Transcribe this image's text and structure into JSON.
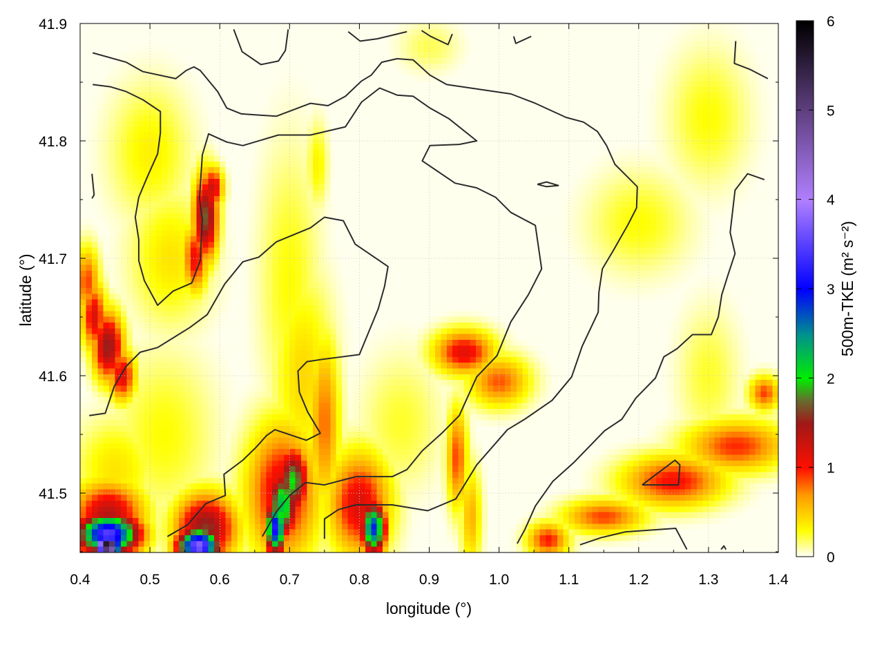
{
  "chart_data": {
    "type": "heatmap",
    "xlabel": "longitude (°)",
    "ylabel": "latitude (°)",
    "colorbar_label": "500m-TKE (m² s⁻²)",
    "xlim": [
      0.4,
      1.4
    ],
    "ylim": [
      41.4494,
      41.9
    ],
    "xticks": [
      "0.4",
      "0.5",
      "0.6",
      "0.7",
      "0.8",
      "0.9",
      "1.0",
      "1.1",
      "1.2",
      "1.3",
      "1.4"
    ],
    "yticks": [
      "41.5",
      "41.6",
      "41.7",
      "41.8",
      "41.9"
    ],
    "clim": [
      0,
      6
    ],
    "cticks": [
      "0",
      "1",
      "2",
      "3",
      "4",
      "5",
      "6"
    ],
    "grid": true,
    "colormap": [
      [
        0,
        "#ffffff"
      ],
      [
        0.3,
        "#ffff00"
      ],
      [
        0.7,
        "#ff9900"
      ],
      [
        1.0,
        "#ff1000"
      ],
      [
        1.5,
        "#a01818"
      ],
      [
        1.75,
        "#6a6a30"
      ],
      [
        2.0,
        "#00ee00"
      ],
      [
        2.5,
        "#009090"
      ],
      [
        3.0,
        "#0000ff"
      ],
      [
        4.0,
        "#b080ff"
      ],
      [
        5.0,
        "#604080"
      ],
      [
        6.0,
        "#000000"
      ]
    ],
    "tke_hotspots": [
      {
        "lon": 0.42,
        "lat": 41.65,
        "sx": 0.012,
        "sy": 0.02,
        "v": 1.2
      },
      {
        "lon": 0.44,
        "lat": 41.625,
        "sx": 0.015,
        "sy": 0.02,
        "v": 1.55
      },
      {
        "lon": 0.46,
        "lat": 41.6,
        "sx": 0.013,
        "sy": 0.015,
        "v": 1.2
      },
      {
        "lon": 0.41,
        "lat": 41.68,
        "sx": 0.012,
        "sy": 0.02,
        "v": 0.9
      },
      {
        "lon": 0.58,
        "lat": 41.735,
        "sx": 0.012,
        "sy": 0.025,
        "v": 1.7
      },
      {
        "lon": 0.565,
        "lat": 41.7,
        "sx": 0.012,
        "sy": 0.02,
        "v": 1.1
      },
      {
        "lon": 0.59,
        "lat": 41.76,
        "sx": 0.01,
        "sy": 0.012,
        "v": 1.3
      },
      {
        "lon": 0.5,
        "lat": 41.79,
        "sx": 0.04,
        "sy": 0.04,
        "v": 0.35
      },
      {
        "lon": 0.53,
        "lat": 41.7,
        "sx": 0.04,
        "sy": 0.04,
        "v": 0.4
      },
      {
        "lon": 0.44,
        "lat": 41.455,
        "sx": 0.012,
        "sy": 0.006,
        "v": 6
      },
      {
        "lon": 0.44,
        "lat": 41.465,
        "sx": 0.03,
        "sy": 0.012,
        "v": 3.5
      },
      {
        "lon": 0.44,
        "lat": 41.48,
        "sx": 0.035,
        "sy": 0.02,
        "v": 1.4
      },
      {
        "lon": 0.57,
        "lat": 41.455,
        "sx": 0.02,
        "sy": 0.01,
        "v": 3.8
      },
      {
        "lon": 0.58,
        "lat": 41.47,
        "sx": 0.03,
        "sy": 0.02,
        "v": 1.6
      },
      {
        "lon": 0.68,
        "lat": 41.47,
        "sx": 0.01,
        "sy": 0.015,
        "v": 3.2
      },
      {
        "lon": 0.69,
        "lat": 41.49,
        "sx": 0.015,
        "sy": 0.02,
        "v": 2.3
      },
      {
        "lon": 0.705,
        "lat": 41.51,
        "sx": 0.015,
        "sy": 0.02,
        "v": 2.0
      },
      {
        "lon": 0.69,
        "lat": 41.5,
        "sx": 0.035,
        "sy": 0.04,
        "v": 1.2
      },
      {
        "lon": 0.82,
        "lat": 41.47,
        "sx": 0.012,
        "sy": 0.015,
        "v": 2.9
      },
      {
        "lon": 0.8,
        "lat": 41.49,
        "sx": 0.03,
        "sy": 0.03,
        "v": 1.2
      },
      {
        "lon": 0.75,
        "lat": 41.56,
        "sx": 0.015,
        "sy": 0.05,
        "v": 0.8
      },
      {
        "lon": 0.72,
        "lat": 41.6,
        "sx": 0.03,
        "sy": 0.06,
        "v": 0.45
      },
      {
        "lon": 0.95,
        "lat": 41.62,
        "sx": 0.03,
        "sy": 0.013,
        "v": 1.15
      },
      {
        "lon": 1.0,
        "lat": 41.595,
        "sx": 0.03,
        "sy": 0.015,
        "v": 0.85
      },
      {
        "lon": 0.94,
        "lat": 41.53,
        "sx": 0.01,
        "sy": 0.03,
        "v": 0.9
      },
      {
        "lon": 0.96,
        "lat": 41.48,
        "sx": 0.01,
        "sy": 0.03,
        "v": 0.6
      },
      {
        "lon": 1.07,
        "lat": 41.46,
        "sx": 0.02,
        "sy": 0.01,
        "v": 1.0
      },
      {
        "lon": 1.15,
        "lat": 41.48,
        "sx": 0.04,
        "sy": 0.01,
        "v": 0.9
      },
      {
        "lon": 1.25,
        "lat": 41.51,
        "sx": 0.05,
        "sy": 0.015,
        "v": 1.05
      },
      {
        "lon": 1.34,
        "lat": 41.54,
        "sx": 0.05,
        "sy": 0.015,
        "v": 0.95
      },
      {
        "lon": 1.38,
        "lat": 41.585,
        "sx": 0.015,
        "sy": 0.01,
        "v": 0.9
      },
      {
        "lon": 0.7,
        "lat": 41.68,
        "sx": 0.03,
        "sy": 0.08,
        "v": 0.3
      },
      {
        "lon": 0.52,
        "lat": 41.55,
        "sx": 0.05,
        "sy": 0.05,
        "v": 0.3
      },
      {
        "lon": 0.86,
        "lat": 41.56,
        "sx": 0.04,
        "sy": 0.04,
        "v": 0.25
      },
      {
        "lon": 1.2,
        "lat": 41.73,
        "sx": 0.05,
        "sy": 0.03,
        "v": 0.3
      },
      {
        "lon": 1.3,
        "lat": 41.82,
        "sx": 0.04,
        "sy": 0.04,
        "v": 0.3
      },
      {
        "lon": 0.74,
        "lat": 41.78,
        "sx": 0.01,
        "sy": 0.025,
        "v": 0.35
      },
      {
        "lon": 0.9,
        "lat": 41.88,
        "sx": 0.03,
        "sy": 0.015,
        "v": 0.2
      },
      {
        "lon": 1.3,
        "lat": 41.6,
        "sx": 0.03,
        "sy": 0.04,
        "v": 0.25
      },
      {
        "lon": 0.45,
        "lat": 41.52,
        "sx": 0.04,
        "sy": 0.03,
        "v": 0.4
      }
    ],
    "contours": [
      [
        [
          0.418,
          41.875
        ],
        [
          0.466,
          41.867
        ],
        [
          0.49,
          41.859
        ],
        [
          0.537,
          41.853
        ],
        [
          0.552,
          41.86
        ],
        [
          0.563,
          41.863
        ],
        [
          0.572,
          41.86
        ],
        [
          0.597,
          41.842
        ],
        [
          0.61,
          41.828
        ],
        [
          0.631,
          41.823
        ],
        [
          0.681,
          41.821
        ],
        [
          0.73,
          41.832
        ],
        [
          0.755,
          41.83
        ],
        [
          0.78,
          41.838
        ],
        [
          0.803,
          41.851
        ],
        [
          0.817,
          41.856
        ],
        [
          0.832,
          41.867
        ],
        [
          0.854,
          41.87
        ],
        [
          0.877,
          41.869
        ],
        [
          0.901,
          41.856
        ],
        [
          0.925,
          41.848
        ],
        [
          1.017,
          41.84
        ],
        [
          1.052,
          41.832
        ],
        [
          1.096,
          41.82
        ],
        [
          1.121,
          41.816
        ],
        [
          1.141,
          41.808
        ],
        [
          1.154,
          41.796
        ],
        [
          1.166,
          41.78
        ],
        [
          1.198,
          41.761
        ],
        [
          1.197,
          41.743
        ],
        [
          1.185,
          41.729
        ],
        [
          1.164,
          41.707
        ],
        [
          1.148,
          41.691
        ],
        [
          1.143,
          41.671
        ],
        [
          1.142,
          41.654
        ],
        [
          1.119,
          41.625
        ],
        [
          1.104,
          41.599
        ],
        [
          1.076,
          41.579
        ],
        [
          1.037,
          41.563
        ],
        [
          1.012,
          41.554
        ],
        [
          0.968,
          41.524
        ],
        [
          0.938,
          41.495
        ],
        [
          0.898,
          41.485
        ],
        [
          0.847,
          41.49
        ],
        [
          0.795,
          41.49
        ],
        [
          0.77,
          41.486
        ],
        [
          0.75,
          41.478
        ],
        [
          0.75,
          41.461
        ]
      ],
      [
        [
          0.418,
          41.848
        ],
        [
          0.444,
          41.846
        ],
        [
          0.466,
          41.842
        ],
        [
          0.49,
          41.835
        ],
        [
          0.515,
          41.825
        ],
        [
          0.515,
          41.807
        ],
        [
          0.511,
          41.789
        ],
        [
          0.496,
          41.769
        ],
        [
          0.484,
          41.752
        ],
        [
          0.479,
          41.735
        ],
        [
          0.484,
          41.716
        ],
        [
          0.484,
          41.698
        ],
        [
          0.492,
          41.681
        ],
        [
          0.511,
          41.66
        ],
        [
          0.533,
          41.672
        ],
        [
          0.56,
          41.679
        ],
        [
          0.572,
          41.698
        ],
        [
          0.575,
          41.733
        ],
        [
          0.571,
          41.751
        ],
        [
          0.575,
          41.788
        ],
        [
          0.584,
          41.806
        ],
        [
          0.61,
          41.799
        ],
        [
          0.633,
          41.796
        ],
        [
          0.684,
          41.805
        ],
        [
          0.73,
          41.805
        ],
        [
          0.78,
          41.812
        ],
        [
          0.803,
          41.833
        ],
        [
          0.829,
          41.845
        ],
        [
          0.854,
          41.839
        ],
        [
          0.877,
          41.838
        ],
        [
          0.901,
          41.828
        ],
        [
          0.928,
          41.819
        ],
        [
          0.968,
          41.8
        ],
        [
          0.943,
          41.797
        ],
        [
          0.901,
          41.796
        ],
        [
          0.89,
          41.783
        ],
        [
          0.937,
          41.764
        ],
        [
          0.968,
          41.76
        ],
        [
          0.995,
          41.752
        ],
        [
          1.017,
          41.739
        ],
        [
          1.052,
          41.728
        ],
        [
          1.061,
          41.691
        ],
        [
          1.042,
          41.669
        ],
        [
          1.017,
          41.646
        ],
        [
          0.997,
          41.617
        ],
        [
          0.968,
          41.599
        ],
        [
          0.943,
          41.566
        ],
        [
          0.918,
          41.551
        ],
        [
          0.89,
          41.536
        ],
        [
          0.868,
          41.52
        ],
        [
          0.847,
          41.514
        ],
        [
          0.795,
          41.514
        ],
        [
          0.75,
          41.507
        ],
        [
          0.723,
          41.509
        ],
        [
          0.7,
          41.498
        ],
        [
          0.681,
          41.484
        ],
        [
          0.661,
          41.463
        ]
      ],
      [
        [
          0.413,
          41.566
        ],
        [
          0.436,
          41.568
        ],
        [
          0.449,
          41.591
        ],
        [
          0.466,
          41.608
        ],
        [
          0.486,
          41.62
        ],
        [
          0.511,
          41.624
        ],
        [
          0.557,
          41.641
        ],
        [
          0.582,
          41.652
        ],
        [
          0.607,
          41.678
        ],
        [
          0.633,
          41.697
        ],
        [
          0.656,
          41.701
        ],
        [
          0.681,
          41.714
        ],
        [
          0.73,
          41.726
        ],
        [
          0.75,
          41.735
        ],
        [
          0.777,
          41.732
        ],
        [
          0.794,
          41.712
        ],
        [
          0.841,
          41.693
        ],
        [
          0.836,
          41.676
        ],
        [
          0.827,
          41.657
        ],
        [
          0.8,
          41.618
        ],
        [
          0.748,
          41.614
        ],
        [
          0.725,
          41.612
        ],
        [
          0.712,
          41.604
        ],
        [
          0.714,
          41.586
        ],
        [
          0.726,
          41.569
        ],
        [
          0.744,
          41.551
        ],
        [
          0.724,
          41.545
        ],
        [
          0.679,
          41.554
        ],
        [
          0.667,
          41.549
        ],
        [
          0.652,
          41.539
        ],
        [
          0.633,
          41.528
        ],
        [
          0.606,
          41.516
        ],
        [
          0.608,
          41.498
        ],
        [
          0.58,
          41.491
        ],
        [
          0.554,
          41.473
        ],
        [
          0.525,
          41.463
        ]
      ],
      [
        [
          1.38,
          41.767
        ],
        [
          1.356,
          41.772
        ],
        [
          1.338,
          41.758
        ],
        [
          1.331,
          41.722
        ],
        [
          1.338,
          41.704
        ],
        [
          1.328,
          41.686
        ],
        [
          1.319,
          41.669
        ],
        [
          1.314,
          41.65
        ],
        [
          1.304,
          41.635
        ],
        [
          1.277,
          41.635
        ],
        [
          1.255,
          41.623
        ],
        [
          1.236,
          41.616
        ],
        [
          1.224,
          41.598
        ],
        [
          1.196,
          41.581
        ],
        [
          1.176,
          41.563
        ],
        [
          1.151,
          41.553
        ],
        [
          1.107,
          41.526
        ],
        [
          1.077,
          41.51
        ],
        [
          1.052,
          41.489
        ],
        [
          1.037,
          41.469
        ],
        [
          1.026,
          41.457
        ]
      ],
      [
        [
          1.116,
          41.456
        ],
        [
          1.146,
          41.462
        ],
        [
          1.181,
          41.467
        ],
        [
          1.253,
          41.47
        ],
        [
          1.269,
          41.452
        ]
      ],
      [
        [
          1.205,
          41.507
        ],
        [
          1.252,
          41.528
        ],
        [
          1.259,
          41.524
        ],
        [
          1.257,
          41.507
        ],
        [
          1.205,
          41.507
        ]
      ],
      [
        [
          0.62,
          41.895
        ],
        [
          0.632,
          41.876
        ],
        [
          0.659,
          41.865
        ],
        [
          0.684,
          41.868
        ],
        [
          0.694,
          41.877
        ],
        [
          0.698,
          41.895
        ]
      ],
      [
        [
          0.784,
          41.893
        ],
        [
          0.801,
          41.885
        ],
        [
          0.826,
          41.887
        ],
        [
          0.868,
          41.893
        ]
      ],
      [
        [
          0.889,
          41.894
        ],
        [
          0.902,
          41.889
        ],
        [
          0.927,
          41.882
        ],
        [
          0.933,
          41.891
        ]
      ],
      [
        [
          1.021,
          41.889
        ],
        [
          1.024,
          41.883
        ],
        [
          1.046,
          41.889
        ]
      ],
      [
        [
          1.339,
          41.885
        ],
        [
          1.337,
          41.866
        ],
        [
          1.359,
          41.861
        ],
        [
          1.385,
          41.853
        ]
      ],
      [
        [
          1.055,
          41.763
        ],
        [
          1.068,
          41.765
        ],
        [
          1.085,
          41.762
        ],
        [
          1.068,
          41.761
        ],
        [
          1.055,
          41.763
        ]
      ],
      [
        [
          0.417,
          41.772
        ],
        [
          0.42,
          41.754
        ],
        [
          0.417,
          41.751
        ]
      ],
      [
        [
          1.318,
          41.452
        ],
        [
          1.322,
          41.455
        ],
        [
          1.325,
          41.452
        ]
      ]
    ]
  }
}
